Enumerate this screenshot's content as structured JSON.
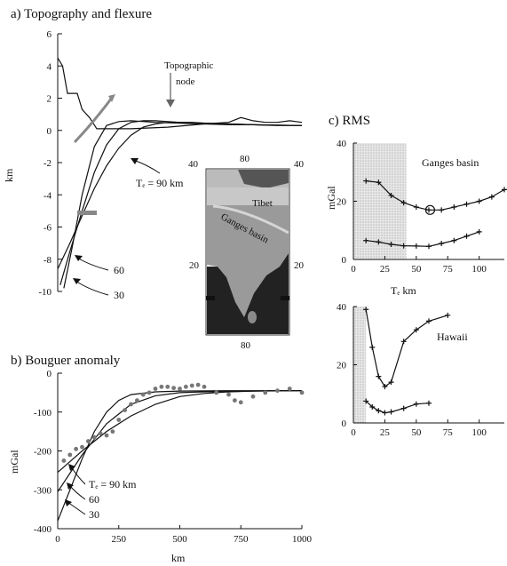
{
  "panel_a": {
    "title": "a) Topography and flexure",
    "ylabel": "km",
    "yticks": [
      "6",
      "4",
      "2",
      "0",
      "-2",
      "-4",
      "-6",
      "-8",
      "-10"
    ],
    "node_label_1": "Topographic",
    "node_label_2": "node",
    "te_labels": [
      "Tₑ = 90 km",
      "60",
      "30"
    ]
  },
  "map": {
    "lat_top_left": "40",
    "lon_top": "80",
    "lat_top_right": "40",
    "lat_mid_left": "20",
    "lat_mid_right": "20",
    "lon_bottom": "80",
    "label_tibet": "Tibet",
    "label_ganges": "Ganges basin"
  },
  "panel_b": {
    "title": "b) Bouguer anomaly",
    "ylabel": "mGal",
    "xlabel": "km",
    "yticks": [
      "0",
      "-100",
      "-200",
      "-300",
      "-400"
    ],
    "xticks": [
      "0",
      "250",
      "500",
      "750",
      "1000"
    ],
    "te_labels": [
      "Tₑ = 90 km",
      "60",
      "30"
    ]
  },
  "panel_c": {
    "title": "c) RMS",
    "ylabel": "mGal",
    "xlabel": "Tₑ  km",
    "top_label": "Ganges basin",
    "bottom_label": "Hawaii",
    "yticks_top": [
      "40",
      "20",
      "0"
    ],
    "yticks_bottom": [
      "40",
      "20",
      "0"
    ],
    "xticks": [
      "0",
      "25",
      "50",
      "75",
      "100"
    ]
  },
  "chart_data": [
    {
      "type": "line",
      "title": "a) Topography and flexure",
      "ylabel": "km",
      "xlim": [
        0,
        1000
      ],
      "ylim": [
        -10,
        6
      ],
      "series": [
        {
          "name": "Tₑ = 90 km",
          "x": [
            0,
            50,
            100,
            150,
            200,
            250,
            300,
            350,
            400,
            450,
            500,
            550,
            600,
            700,
            800,
            900,
            1000
          ],
          "y": [
            -8.6,
            -7.0,
            -5.3,
            -3.6,
            -2.2,
            -1.1,
            -0.3,
            0.2,
            0.4,
            0.5,
            0.5,
            0.5,
            0.45,
            0.4,
            0.35,
            0.3,
            0.3
          ]
        },
        {
          "name": "60",
          "x": [
            10,
            50,
            100,
            150,
            200,
            250,
            300,
            350,
            400,
            450,
            500,
            600,
            700,
            800,
            1000
          ],
          "y": [
            -9.6,
            -7.5,
            -5.0,
            -2.6,
            -0.9,
            0.1,
            0.5,
            0.6,
            0.6,
            0.55,
            0.5,
            0.45,
            0.4,
            0.35,
            0.3
          ]
        },
        {
          "name": "30",
          "x": [
            25,
            60,
            100,
            150,
            200,
            250,
            300,
            350,
            400,
            500,
            600,
            700,
            800,
            1000
          ],
          "y": [
            -9.8,
            -7.2,
            -4.0,
            -1.0,
            0.3,
            0.55,
            0.6,
            0.55,
            0.5,
            0.45,
            0.4,
            0.35,
            0.35,
            0.3
          ]
        },
        {
          "name": "topography",
          "x": [
            0,
            20,
            40,
            80,
            100,
            130,
            160,
            200,
            300,
            450,
            600,
            700,
            750,
            800,
            850,
            900,
            950,
            1000
          ],
          "y": [
            4.5,
            4.0,
            2.3,
            2.3,
            1.3,
            0.8,
            0.1,
            0.1,
            0.1,
            0.2,
            0.4,
            0.5,
            0.8,
            0.6,
            0.5,
            0.5,
            0.6,
            0.5
          ]
        }
      ]
    },
    {
      "type": "scatter",
      "title": "b) Bouguer anomaly",
      "xlabel": "km",
      "ylabel": "mGal",
      "xlim": [
        0,
        1000
      ],
      "ylim": [
        -400,
        0
      ],
      "series": [
        {
          "name": "Tₑ = 90 km",
          "x": [
            0,
            100,
            200,
            300,
            400,
            500,
            600,
            700,
            800,
            900,
            1000
          ],
          "y": [
            -255,
            -200,
            -150,
            -110,
            -80,
            -60,
            -52,
            -48,
            -46,
            -45,
            -45
          ]
        },
        {
          "name": "60",
          "x": [
            0,
            100,
            200,
            300,
            400,
            500,
            600,
            700,
            800,
            1000
          ],
          "y": [
            -305,
            -210,
            -130,
            -80,
            -58,
            -50,
            -48,
            -47,
            -46,
            -45
          ]
        },
        {
          "name": "30",
          "x": [
            0,
            50,
            100,
            150,
            200,
            250,
            300,
            400,
            500,
            700,
            1000
          ],
          "y": [
            -380,
            -300,
            -220,
            -150,
            -100,
            -70,
            -55,
            -48,
            -46,
            -45,
            -45
          ]
        },
        {
          "name": "observed",
          "x": [
            25,
            50,
            75,
            100,
            125,
            150,
            175,
            200,
            225,
            250,
            275,
            300,
            325,
            350,
            375,
            400,
            425,
            450,
            475,
            500,
            525,
            550,
            575,
            600,
            650,
            700,
            725,
            750,
            800,
            850,
            900,
            950,
            1000
          ],
          "y": [
            -225,
            -210,
            -195,
            -190,
            -175,
            -165,
            -155,
            -160,
            -150,
            -120,
            -95,
            -80,
            -70,
            -55,
            -50,
            -40,
            -35,
            -35,
            -38,
            -40,
            -35,
            -32,
            -30,
            -35,
            -50,
            -55,
            -70,
            -75,
            -60,
            -50,
            -45,
            -40,
            -50
          ]
        }
      ]
    },
    {
      "type": "line",
      "title": "c) RMS — Ganges basin",
      "xlabel": "Tₑ  km",
      "ylabel": "mGal",
      "xlim": [
        0,
        120
      ],
      "ylim": [
        0,
        40
      ],
      "shaded_range": [
        0,
        42
      ],
      "series": [
        {
          "name": "upper",
          "x": [
            10,
            20,
            30,
            40,
            50,
            60,
            70,
            80,
            90,
            100,
            110,
            120
          ],
          "y": [
            27,
            26.5,
            22,
            19.5,
            18,
            17,
            17,
            18,
            19,
            20,
            21.5,
            24
          ]
        },
        {
          "name": "lower",
          "x": [
            10,
            20,
            30,
            40,
            50,
            60,
            70,
            80,
            90,
            100
          ],
          "y": [
            6.5,
            6,
            5.2,
            4.7,
            4.6,
            4.5,
            5.5,
            6.5,
            8,
            9.5
          ]
        }
      ],
      "minimum_marker": {
        "x": 61,
        "y": 17
      }
    },
    {
      "type": "line",
      "title": "c) RMS — Hawaii",
      "xlabel": "Tₑ  km",
      "ylabel": "mGal",
      "xlim": [
        0,
        120
      ],
      "ylim": [
        0,
        40
      ],
      "shaded_range": [
        0,
        10
      ],
      "series": [
        {
          "name": "upper",
          "x": [
            10,
            15,
            20,
            25,
            30,
            40,
            50,
            60,
            75
          ],
          "y": [
            39,
            26,
            16,
            12.5,
            14,
            28,
            32,
            35,
            37
          ]
        },
        {
          "name": "lower",
          "x": [
            10,
            15,
            20,
            25,
            30,
            40,
            50,
            60
          ],
          "y": [
            7.5,
            5.5,
            4.2,
            3.5,
            3.8,
            5,
            6.5,
            6.8
          ]
        }
      ]
    }
  ]
}
